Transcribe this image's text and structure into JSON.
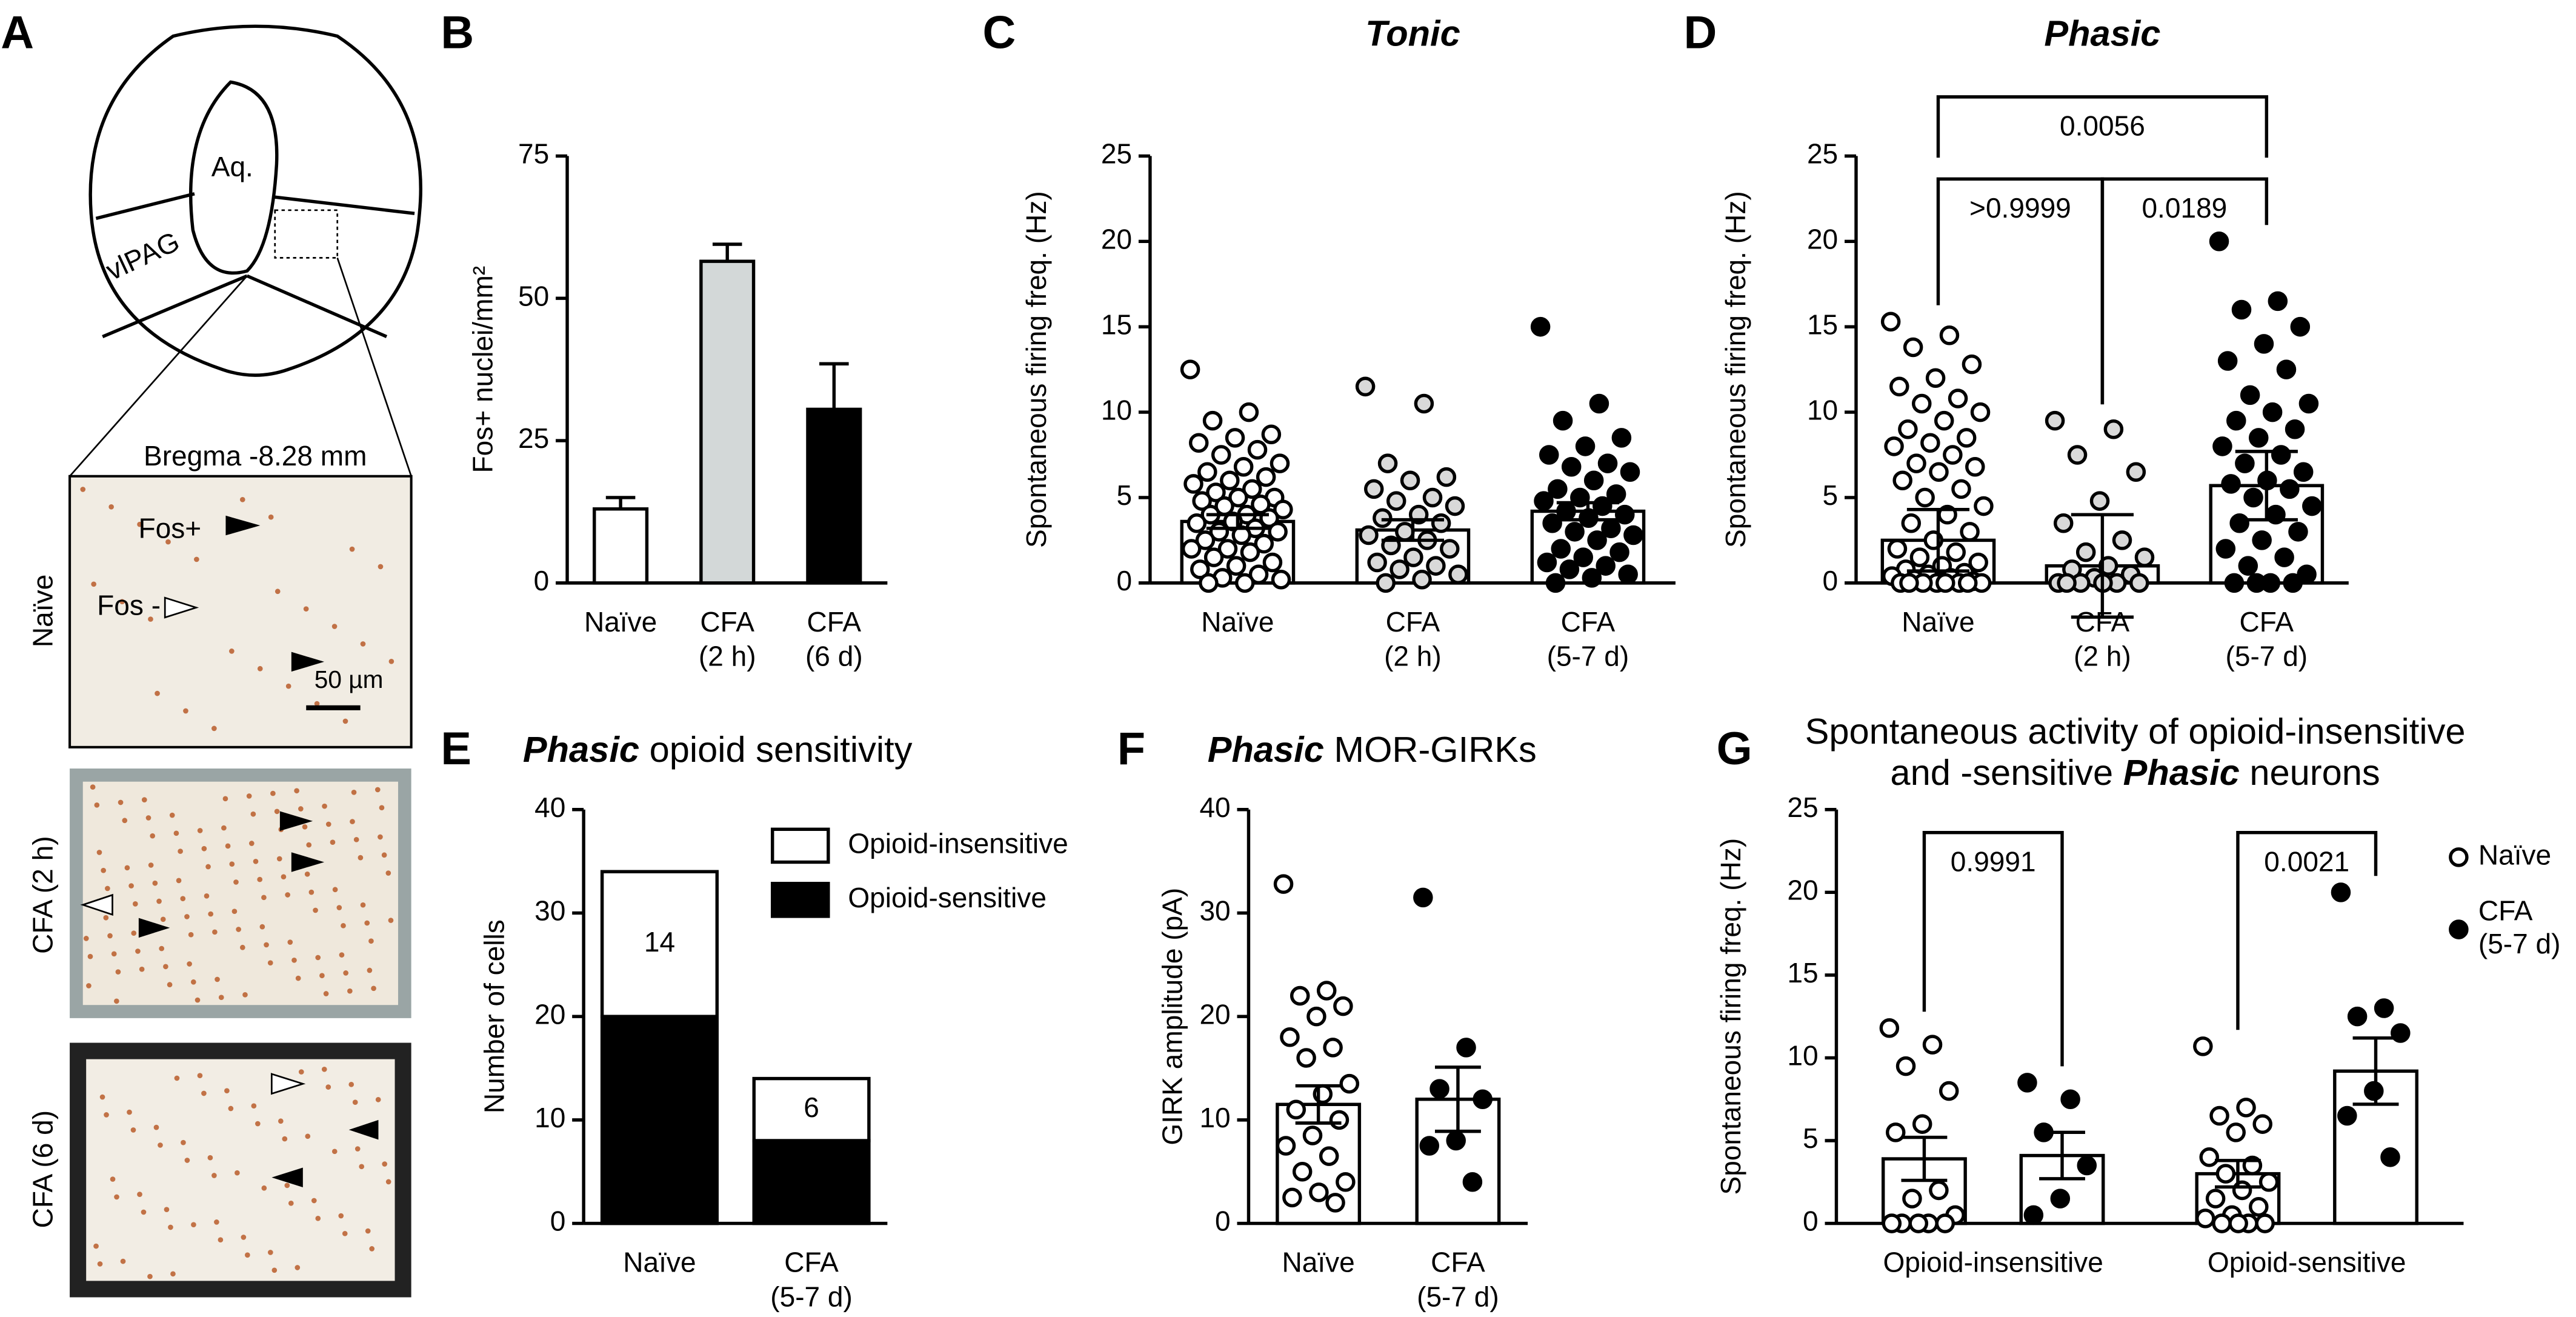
{
  "panel_a": {
    "letter": "A",
    "aqueduct": "Aq.",
    "region": "vlPAG",
    "bregma": "Bregma -8.28 mm",
    "fos_pos": "Fos+",
    "fos_neg": "Fos -",
    "scale_bar": "50 µm",
    "conditions": [
      "Naïve",
      "CFA (2 h)",
      "CFA (6 d)"
    ]
  },
  "chart_data": [
    {
      "panel": "B",
      "type": "bar",
      "ylabel": "Fos+ nuclei/mm²",
      "categories": [
        [
          "Naïve"
        ],
        [
          "CFA",
          "(2 h)"
        ],
        [
          "CFA",
          "(6 d)"
        ]
      ],
      "series": [
        {
          "values": [
            13,
            56.5,
            30.5
          ],
          "errors": [
            2,
            3,
            8
          ],
          "colors": [
            "#ffffff",
            "#d3d8d8",
            "#000000"
          ]
        }
      ],
      "error_direction": "up",
      "ylim": [
        0,
        75
      ],
      "yticks": [
        0,
        25,
        50,
        75
      ]
    },
    {
      "panel": "C",
      "type": "dotplot",
      "title": [
        [
          {
            "text": "Tonic",
            "em": true
          }
        ]
      ],
      "ylabel": "Spontaneous firing freq. (Hz)",
      "categories": [
        [
          "Naïve"
        ],
        [
          "CFA",
          "(2 h)"
        ],
        [
          "CFA",
          "(5-7 d)"
        ]
      ],
      "series": [
        {
          "color": "#ffffff",
          "point_colors": [
            "#ffffff",
            "#d9d9d9",
            "#000000"
          ],
          "values": [
            3.6,
            3.1,
            4.2
          ],
          "errors": [
            0.4,
            0.6,
            0.5
          ],
          "points": [
            [
              12.5,
              10,
              9.5,
              8.7,
              8.5,
              8.2,
              7.8,
              7.5,
              7,
              6.8,
              6.5,
              6.2,
              6,
              5.8,
              5.5,
              5.3,
              5,
              5,
              4.8,
              4.6,
              4.5,
              4.3,
              4,
              4,
              3.8,
              3.6,
              3.5,
              3.2,
              3,
              3,
              2.8,
              2.5,
              2.3,
              2,
              2,
              1.8,
              1.5,
              1.2,
              1,
              0.8,
              0.5,
              0.3,
              0.2,
              0,
              0
            ],
            [
              11.5,
              10.5,
              7,
              6.2,
              6,
              5.5,
              5,
              4.8,
              4.5,
              4,
              3.8,
              3.5,
              3,
              2.8,
              2.5,
              2.2,
              2,
              1.5,
              1.2,
              1,
              0.8,
              0.5,
              0.2,
              0
            ],
            [
              15,
              10.5,
              9.5,
              8.5,
              8,
              7.5,
              7,
              6.8,
              6.5,
              6,
              5.5,
              5.2,
              5,
              4.8,
              4.5,
              4.2,
              4,
              3.8,
              3.5,
              3.2,
              3,
              2.8,
              2.5,
              2,
              1.8,
              1.5,
              1.2,
              1,
              0.8,
              0.5,
              0.3,
              0
            ]
          ]
        }
      ],
      "ylim": [
        0,
        25
      ],
      "yticks": [
        0,
        5,
        10,
        15,
        20,
        25
      ]
    },
    {
      "panel": "D",
      "type": "dotplot",
      "title": [
        [
          {
            "text": "Phasic",
            "em": true
          }
        ]
      ],
      "ylabel": "Spontaneous firing freq. (Hz)",
      "categories": [
        [
          "Naïve"
        ],
        [
          "CFA",
          "(2 h)"
        ],
        [
          "CFA",
          "(5-7 d)"
        ]
      ],
      "series": [
        {
          "color": "#ffffff",
          "point_colors": [
            "#ffffff",
            "#d9d9d9",
            "#000000"
          ],
          "values": [
            2.5,
            1,
            5.7
          ],
          "errors": [
            1.8,
            3,
            2
          ],
          "points": [
            [
              15.3,
              14.5,
              13.8,
              12.8,
              12,
              11.5,
              10.8,
              10.5,
              10,
              9.5,
              9,
              8.5,
              8.2,
              8,
              7.5,
              7,
              6.8,
              6.5,
              6,
              5.5,
              5,
              4.5,
              4,
              3.5,
              3,
              2.5,
              2,
              1.8,
              1.5,
              1.2,
              1,
              0.8,
              0.6,
              0.5,
              0.4,
              0.3,
              0.2,
              0.1,
              0,
              0,
              0,
              0,
              0,
              0,
              0,
              0
            ],
            [
              9.5,
              9,
              7.5,
              6.5,
              4.8,
              3.5,
              2.5,
              1.8,
              1.5,
              1,
              0.8,
              0.5,
              0.3,
              0,
              0,
              0,
              0,
              0,
              0
            ],
            [
              20,
              16.5,
              16,
              15,
              14,
              13,
              12.5,
              11,
              10.5,
              10,
              9.5,
              9,
              8.5,
              8,
              7.5,
              7,
              6.5,
              6,
              5.8,
              5.5,
              5,
              4.5,
              4,
              3.5,
              3,
              2.5,
              2,
              1.5,
              1,
              0.5,
              0,
              0,
              0,
              0
            ]
          ]
        }
      ],
      "comparisons": [
        {
          "between": [
            0,
            1
          ],
          "label": ">0.9999"
        },
        {
          "between": [
            1,
            2
          ],
          "label": "0.0189"
        },
        {
          "between": [
            0,
            2
          ],
          "label": "0.0056"
        }
      ],
      "ylim": [
        0,
        25
      ],
      "yticks": [
        0,
        5,
        10,
        15,
        20,
        25
      ]
    },
    {
      "panel": "E",
      "type": "bar",
      "stacked": true,
      "data_labels": true,
      "title": [
        [
          {
            "text": "Phasic",
            "em": true
          },
          {
            "text": " opioid sensitivity",
            "em": false
          }
        ]
      ],
      "ylabel": "Number of cells",
      "categories": [
        [
          "Naïve"
        ],
        [
          "CFA",
          "(5-7 d)"
        ]
      ],
      "series": [
        {
          "name": "Opioid-sensitive",
          "color": "#000000",
          "label_color": "#ffffff",
          "values": [
            20,
            8
          ]
        },
        {
          "name": "Opioid-insensitive",
          "color": "#ffffff",
          "label_color": "#000000",
          "values": [
            14,
            6
          ]
        }
      ],
      "legend": "top-right",
      "ylim": [
        0,
        40
      ],
      "yticks": [
        0,
        10,
        20,
        30,
        40
      ]
    },
    {
      "panel": "F",
      "type": "dotplot",
      "title": [
        [
          {
            "text": "Phasic",
            "em": true
          },
          {
            "text": " MOR-GIRKs",
            "em": false
          }
        ]
      ],
      "ylabel": "GIRK amplitude (pA)",
      "categories": [
        [
          "Naïve"
        ],
        [
          "CFA",
          "(5-7 d)"
        ]
      ],
      "series": [
        {
          "color": "#ffffff",
          "point_colors": [
            "#ffffff",
            "#000000"
          ],
          "values": [
            11.5,
            12
          ],
          "errors": [
            1.8,
            3.1
          ],
          "points": [
            [
              32.8,
              22.5,
              22,
              21,
              20,
              18,
              17,
              16,
              13.5,
              12.5,
              11,
              10,
              8.5,
              7.5,
              6.5,
              5,
              4,
              3,
              2.5,
              2
            ],
            [
              31.5,
              17,
              13,
              12,
              8,
              7.5,
              4
            ]
          ]
        }
      ],
      "ylim": [
        0,
        40
      ],
      "yticks": [
        0,
        10,
        20,
        30,
        40
      ]
    },
    {
      "panel": "G",
      "type": "dotplot",
      "title": [
        [
          {
            "text": "Spontaneous activity of opioid-insensitive",
            "em": false
          }
        ],
        [
          {
            "text": "and -sensitive ",
            "em": false
          },
          {
            "text": "Phasic",
            "em": true
          },
          {
            "text": " neurons",
            "em": false
          }
        ]
      ],
      "ylabel": "Spontaneous firing freq. (Hz)",
      "categories": [
        [
          "Opioid-insensitive"
        ],
        [
          "Opioid-sensitive"
        ]
      ],
      "series": [
        {
          "name": [
            "Naïve"
          ],
          "color": "#ffffff",
          "point_color": "#ffffff",
          "values": [
            3.9,
            3
          ],
          "errors": [
            1.3,
            0.8
          ],
          "points": [
            [
              11.8,
              10.8,
              9.5,
              8,
              6,
              5.5,
              2,
              1.5,
              0.5,
              0,
              0,
              0,
              0,
              0
            ],
            [
              10.7,
              7,
              6.5,
              6,
              5.5,
              4,
              3.5,
              3,
              2.5,
              2,
              1.5,
              1,
              0.5,
              0.3,
              0,
              0,
              0,
              0
            ]
          ]
        },
        {
          "name": [
            "CFA",
            "(5-7 d)"
          ],
          "color": "#ffffff",
          "point_color": "#000000",
          "values": [
            4.1,
            9.2
          ],
          "errors": [
            1.4,
            2
          ],
          "points": [
            [
              8.5,
              7.5,
              5.5,
              3.5,
              1.5,
              0.5
            ],
            [
              20,
              13,
              12.5,
              11.5,
              8,
              6.5,
              4
            ]
          ]
        }
      ],
      "comparisons": [
        {
          "between": [
            0,
            1
          ],
          "label": "0.9991"
        },
        {
          "between": [
            2,
            3
          ],
          "label": "0.0021"
        }
      ],
      "legend": "right",
      "ylim": [
        0,
        25
      ],
      "yticks": [
        0,
        5,
        10,
        15,
        20,
        25
      ]
    }
  ]
}
